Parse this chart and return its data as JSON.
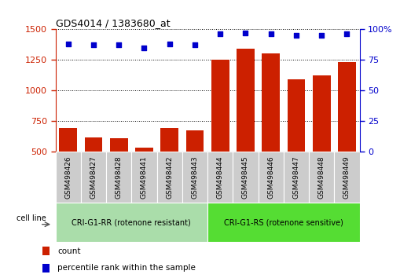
{
  "title": "GDS4014 / 1383680_at",
  "samples": [
    "GSM498426",
    "GSM498427",
    "GSM498428",
    "GSM498441",
    "GSM498442",
    "GSM498443",
    "GSM498444",
    "GSM498445",
    "GSM498446",
    "GSM498447",
    "GSM498448",
    "GSM498449"
  ],
  "counts": [
    690,
    615,
    610,
    530,
    690,
    670,
    1250,
    1340,
    1300,
    1090,
    1120,
    1230
  ],
  "percentile_ranks": [
    88,
    87,
    87,
    85,
    88,
    87,
    96,
    97,
    96,
    95,
    95,
    96
  ],
  "group1_label": "CRI-G1-RR (rotenone resistant)",
  "group2_label": "CRI-G1-RS (rotenone sensitive)",
  "group1_count": 6,
  "group2_count": 6,
  "cell_line_label": "cell line",
  "bar_color": "#CC2000",
  "dot_color": "#0000CC",
  "group1_bg": "#AADDAA",
  "group2_bg": "#55DD33",
  "xlabels_bg": "#CCCCCC",
  "plot_bg": "#FFFFFF",
  "ylim_left": [
    500,
    1500
  ],
  "ylim_right": [
    0,
    100
  ],
  "yticks_left": [
    500,
    750,
    1000,
    1250,
    1500
  ],
  "yticks_right": [
    0,
    25,
    50,
    75,
    100
  ],
  "legend_count_label": "count",
  "legend_pct_label": "percentile rank within the sample"
}
